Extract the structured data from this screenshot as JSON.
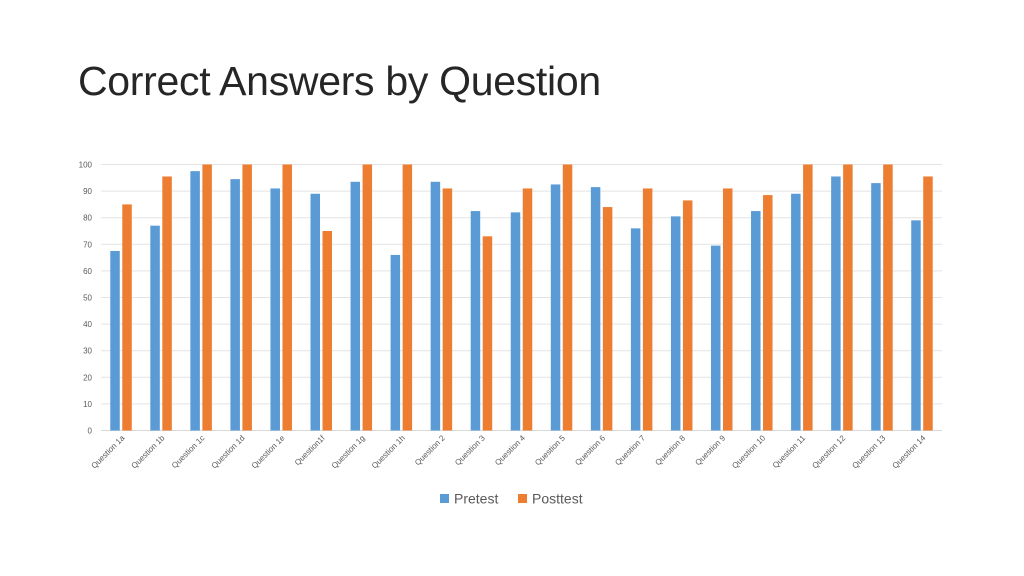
{
  "slide": {
    "title": "Correct Answers by Question"
  },
  "chart_data": {
    "type": "bar",
    "title": "",
    "xlabel": "",
    "ylabel": "",
    "ylim": [
      0,
      100
    ],
    "yticks": [
      0,
      10,
      20,
      30,
      40,
      50,
      60,
      70,
      80,
      90,
      100
    ],
    "grid": true,
    "legend_position": "bottom",
    "categories": [
      "Question 1a",
      "Question 1b",
      "Question 1c",
      "Question 1d",
      "Question 1e",
      "Question1f",
      "Question 1g",
      "Question 1h",
      "Question 2",
      "Question 3",
      "Question 4",
      "Question 5",
      "Question 6",
      "Question 7",
      "Question 8",
      "Question 9",
      "Question 10",
      "Question 11",
      "Question 12",
      "Question 13",
      "Question 14"
    ],
    "series": [
      {
        "name": "Pretest",
        "color": "#5b9bd5",
        "values": [
          67.5,
          77,
          97.5,
          94.5,
          91,
          89,
          93.5,
          66,
          93.5,
          82.5,
          82,
          92.5,
          91.5,
          76,
          80.5,
          69.5,
          82.5,
          89,
          95.5,
          93,
          79
        ]
      },
      {
        "name": "Posttest",
        "color": "#ed7d31",
        "values": [
          85,
          95.5,
          100,
          100,
          100,
          75,
          100,
          100,
          91,
          73,
          91,
          100,
          84,
          91,
          86.5,
          91,
          88.5,
          100,
          100,
          100,
          95.5
        ]
      }
    ]
  }
}
